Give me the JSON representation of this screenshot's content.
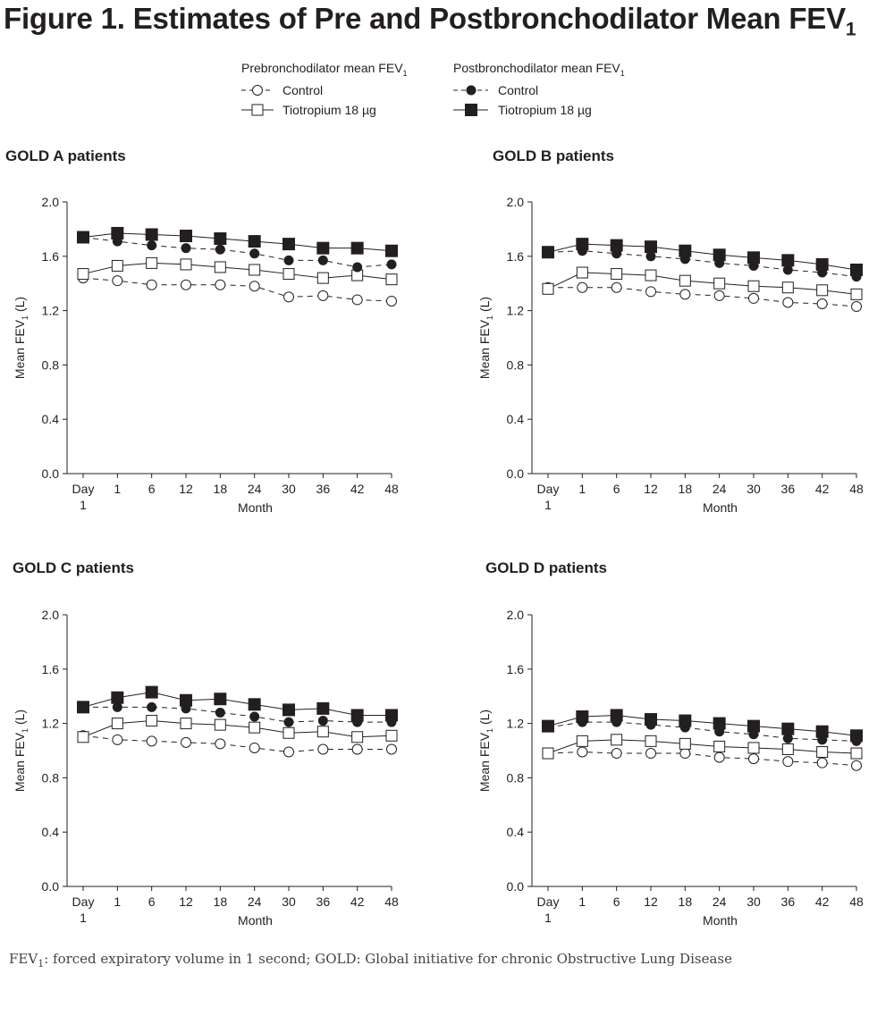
{
  "figure": {
    "title_main": "Figure 1. Estimates of Pre and Postbronchodilator Mean FEV",
    "title_sub": "1"
  },
  "legend": {
    "pre_heading_main": "Prebronchodilator mean FEV",
    "pre_heading_sub": "1",
    "post_heading_main": "Postbronchodilator mean FEV",
    "post_heading_sub": "1",
    "entries": [
      "Control",
      "Tiotropium 18 µg",
      "Control",
      "Tiotropium 18 µg"
    ]
  },
  "footnote": {
    "abbr_main": "FEV",
    "abbr_sub": "1",
    "text": ":  forced expiratory volume in 1 second; GOLD: Global initiative for chronic Obstructive Lung Disease"
  },
  "colors": {
    "ink": "#231f20",
    "marker_fill_open": "#ffffff"
  },
  "chart_data": [
    {
      "type": "line",
      "title": "GOLD A patients",
      "xlabel": "Month",
      "ylabel_main": "Mean FEV",
      "ylabel_sub": "1",
      "ylabel_unit": "(L)",
      "categories": [
        "Day 1",
        "1",
        "6",
        "12",
        "18",
        "24",
        "30",
        "36",
        "42",
        "48"
      ],
      "ylim": [
        0,
        2.0
      ],
      "yticks": [
        "0.0",
        "0.4",
        "0.8",
        "1.2",
        "1.6",
        "2.0"
      ],
      "series": [
        {
          "name": "Control",
          "group": "Prebronchodilator mean FEV1",
          "marker": "open-circle",
          "line": "dashed",
          "values": [
            1.44,
            1.42,
            1.39,
            1.39,
            1.39,
            1.38,
            1.3,
            1.31,
            1.28,
            1.27
          ]
        },
        {
          "name": "Tiotropium 18 µg",
          "group": "Prebronchodilator mean FEV1",
          "marker": "open-square",
          "line": "solid",
          "values": [
            1.47,
            1.53,
            1.55,
            1.54,
            1.52,
            1.5,
            1.47,
            1.44,
            1.46,
            1.43
          ]
        },
        {
          "name": "Control",
          "group": "Postbronchodilator mean FEV1",
          "marker": "filled-circle",
          "line": "dashed",
          "values": [
            1.74,
            1.71,
            1.68,
            1.66,
            1.65,
            1.62,
            1.57,
            1.57,
            1.52,
            1.54
          ]
        },
        {
          "name": "Tiotropium 18 µg",
          "group": "Postbronchodilator mean FEV1",
          "marker": "filled-square",
          "line": "solid",
          "values": [
            1.74,
            1.77,
            1.76,
            1.75,
            1.73,
            1.71,
            1.69,
            1.66,
            1.66,
            1.64
          ]
        }
      ]
    },
    {
      "type": "line",
      "title": "GOLD B patients",
      "xlabel": "Month",
      "ylabel_main": "Mean FEV",
      "ylabel_sub": "1",
      "ylabel_unit": "(L)",
      "categories": [
        "Day 1",
        "1",
        "6",
        "12",
        "18",
        "24",
        "30",
        "36",
        "42",
        "48"
      ],
      "ylim": [
        0,
        2.0
      ],
      "yticks": [
        "0.0",
        "0.4",
        "0.8",
        "1.2",
        "1.6",
        "2.0"
      ],
      "series": [
        {
          "name": "Control",
          "group": "Prebronchodilator mean FEV1",
          "marker": "open-circle",
          "line": "dashed",
          "values": [
            1.37,
            1.37,
            1.37,
            1.34,
            1.32,
            1.31,
            1.29,
            1.26,
            1.25,
            1.23
          ]
        },
        {
          "name": "Tiotropium 18 µg",
          "group": "Prebronchodilator mean FEV1",
          "marker": "open-square",
          "line": "solid",
          "values": [
            1.36,
            1.48,
            1.47,
            1.46,
            1.42,
            1.4,
            1.38,
            1.37,
            1.35,
            1.32
          ]
        },
        {
          "name": "Control",
          "group": "Postbronchodilator mean FEV1",
          "marker": "filled-circle",
          "line": "dashed",
          "values": [
            1.63,
            1.64,
            1.62,
            1.6,
            1.58,
            1.55,
            1.53,
            1.5,
            1.48,
            1.45
          ]
        },
        {
          "name": "Tiotropium 18 µg",
          "group": "Postbronchodilator mean FEV1",
          "marker": "filled-square",
          "line": "solid",
          "values": [
            1.63,
            1.69,
            1.68,
            1.67,
            1.64,
            1.61,
            1.59,
            1.57,
            1.54,
            1.5
          ]
        }
      ]
    },
    {
      "type": "line",
      "title": "GOLD C patients",
      "xlabel": "Month",
      "ylabel_main": "Mean FEV",
      "ylabel_sub": "1",
      "ylabel_unit": "(L)",
      "categories": [
        "Day 1",
        "1",
        "6",
        "12",
        "18",
        "24",
        "30",
        "36",
        "42",
        "48"
      ],
      "ylim": [
        0,
        2.0
      ],
      "yticks": [
        "0.0",
        "0.4",
        "0.8",
        "1.2",
        "1.6",
        "2.0"
      ],
      "series": [
        {
          "name": "Control",
          "group": "Prebronchodilator mean FEV1",
          "marker": "open-circle",
          "line": "dashed",
          "values": [
            1.11,
            1.08,
            1.07,
            1.06,
            1.05,
            1.02,
            0.99,
            1.01,
            1.01,
            1.01
          ]
        },
        {
          "name": "Tiotropium 18 µg",
          "group": "Prebronchodilator mean FEV1",
          "marker": "open-square",
          "line": "solid",
          "values": [
            1.1,
            1.2,
            1.22,
            1.2,
            1.19,
            1.17,
            1.13,
            1.14,
            1.1,
            1.11
          ]
        },
        {
          "name": "Control",
          "group": "Postbronchodilator mean FEV1",
          "marker": "filled-circle",
          "line": "dashed",
          "values": [
            1.32,
            1.32,
            1.32,
            1.31,
            1.28,
            1.25,
            1.21,
            1.22,
            1.21,
            1.21
          ]
        },
        {
          "name": "Tiotropium 18 µg",
          "group": "Postbronchodilator mean FEV1",
          "marker": "filled-square",
          "line": "solid",
          "values": [
            1.32,
            1.39,
            1.43,
            1.37,
            1.38,
            1.34,
            1.3,
            1.31,
            1.26,
            1.26
          ]
        }
      ]
    },
    {
      "type": "line",
      "title": "GOLD D patients",
      "xlabel": "Month",
      "ylabel_main": "Mean FEV",
      "ylabel_sub": "1",
      "ylabel_unit": "(L)",
      "categories": [
        "Day 1",
        "1",
        "6",
        "12",
        "18",
        "24",
        "30",
        "36",
        "42",
        "48"
      ],
      "ylim": [
        0,
        2.0
      ],
      "yticks": [
        "0.0",
        "0.4",
        "0.8",
        "1.2",
        "1.6",
        "2.0"
      ],
      "series": [
        {
          "name": "Control",
          "group": "Prebronchodilator mean FEV1",
          "marker": "open-circle",
          "line": "dashed",
          "values": [
            0.98,
            0.99,
            0.98,
            0.98,
            0.98,
            0.95,
            0.94,
            0.92,
            0.91,
            0.89
          ]
        },
        {
          "name": "Tiotropium 18 µg",
          "group": "Prebronchodilator mean FEV1",
          "marker": "open-square",
          "line": "solid",
          "values": [
            0.98,
            1.07,
            1.08,
            1.07,
            1.05,
            1.03,
            1.02,
            1.01,
            0.99,
            0.98
          ]
        },
        {
          "name": "Control",
          "group": "Postbronchodilator mean FEV1",
          "marker": "filled-circle",
          "line": "dashed",
          "values": [
            1.17,
            1.21,
            1.21,
            1.19,
            1.17,
            1.14,
            1.12,
            1.09,
            1.08,
            1.07
          ]
        },
        {
          "name": "Tiotropium 18 µg",
          "group": "Postbronchodilator mean FEV1",
          "marker": "filled-square",
          "line": "solid",
          "values": [
            1.18,
            1.25,
            1.26,
            1.23,
            1.22,
            1.2,
            1.18,
            1.16,
            1.14,
            1.11
          ]
        }
      ]
    }
  ]
}
